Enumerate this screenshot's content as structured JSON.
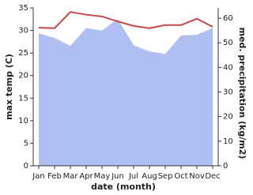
{
  "chart_data": {
    "type": "line",
    "x_label": "date (month)",
    "y_label": "max temp (C)",
    "y2_label": "med. precipitation (kg/m2)",
    "categories": [
      "Jan",
      "Feb",
      "Mar",
      "Apr",
      "May",
      "Jun",
      "Jul",
      "Aug",
      "Sep",
      "Oct",
      "Nov",
      "Dec"
    ],
    "series": [
      {
        "name": "med. precipitation",
        "kind": "area",
        "axis": "y2",
        "color": "#b0bff2",
        "values": [
          53.9,
          52,
          48.8,
          56,
          55,
          59.7,
          49,
          46.5,
          45.5,
          53,
          53.3,
          56
        ]
      },
      {
        "name": "max temp",
        "kind": "line",
        "color": "#c8484a",
        "values": [
          30.6,
          30.5,
          34.1,
          33.5,
          33.1,
          32,
          31,
          30.5,
          31.2,
          31.2,
          32.6,
          30.8
        ]
      }
    ],
    "ylim": [
      0,
      35
    ],
    "yticks": [
      0,
      5,
      10,
      15,
      20,
      25,
      30,
      35
    ],
    "y2lim": [
      0,
      64.2
    ],
    "y2ticks": [
      0,
      10,
      20,
      30,
      40,
      50,
      60
    ]
  }
}
